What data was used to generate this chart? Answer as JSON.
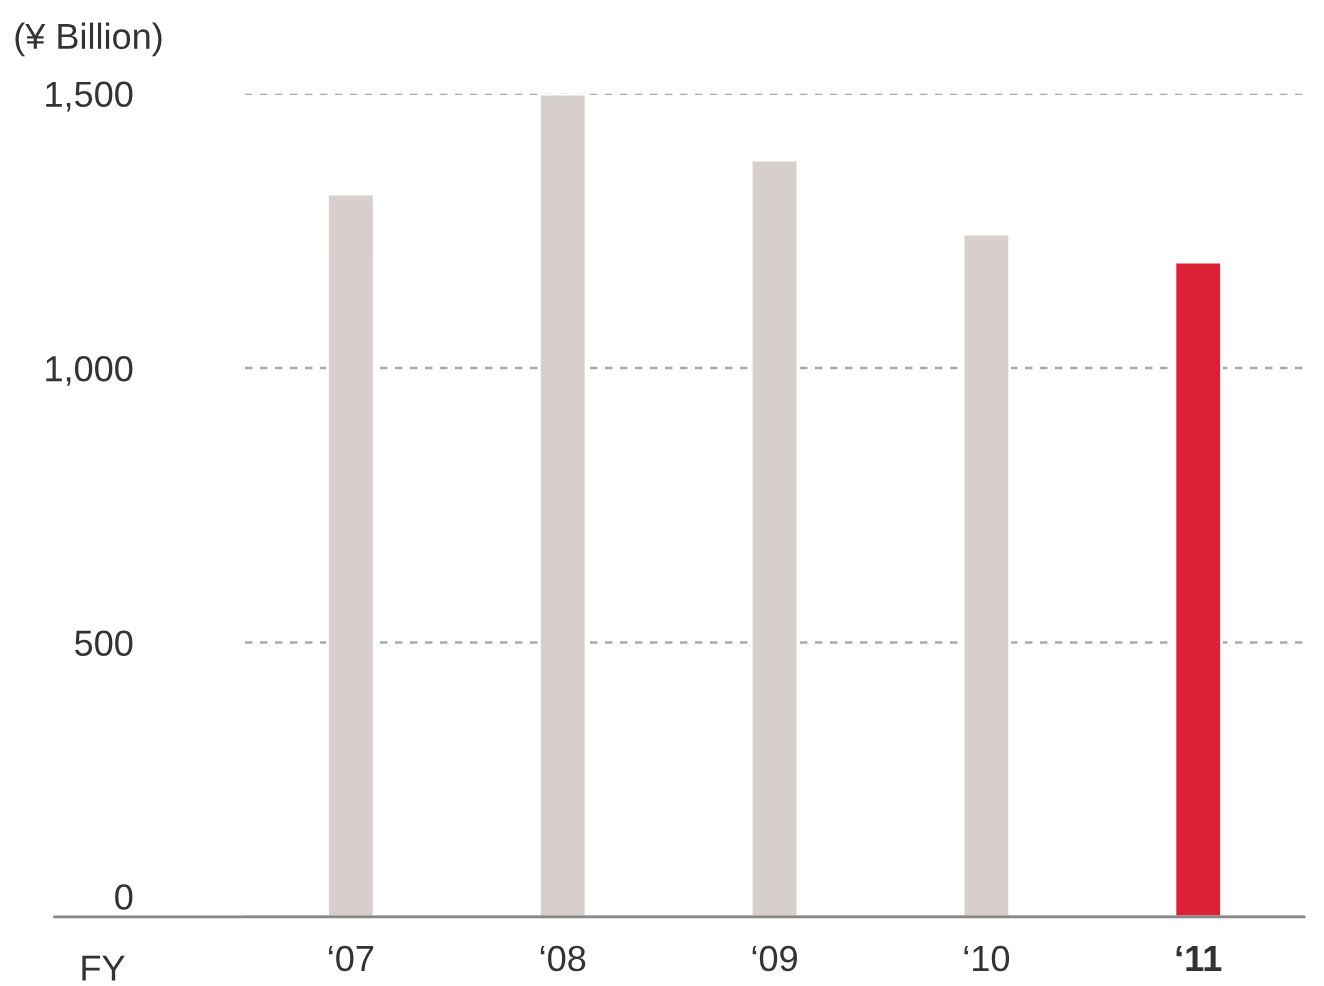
{
  "chart_data": {
    "type": "bar",
    "ylabel": "(¥ Billion)",
    "xlabel": "FY",
    "categories": [
      "‘07",
      "‘08",
      "‘09",
      "‘10",
      "‘11"
    ],
    "values": [
      1317,
      1499,
      1379,
      1244,
      1193
    ],
    "colors": [
      "#d7cfcb",
      "#d7cfcb",
      "#d7cfcb",
      "#d7cfcb",
      "#dc2035"
    ],
    "ylim": [
      0,
      1500
    ],
    "yticks": [
      0,
      {
        "value": 500,
        "label": "500"
      },
      {
        "value": 1000,
        "label": "1,000"
      },
      {
        "value": 1500,
        "label": "1,500"
      }
    ],
    "grid": "y",
    "legend": false
  }
}
